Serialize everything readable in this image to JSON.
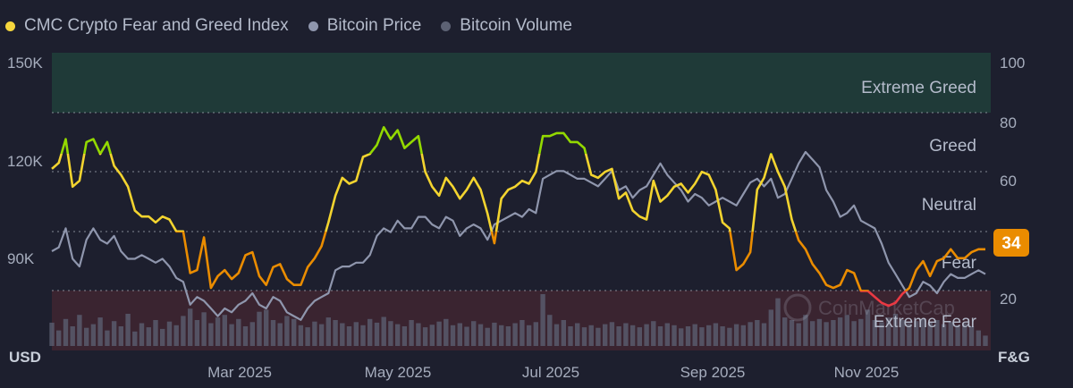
{
  "chart_data": {
    "type": "line",
    "legend": [
      {
        "label": "CMC Crypto Fear and Greed Index",
        "color": "#f5d63d"
      },
      {
        "label": "Bitcoin Price",
        "color": "#8f96ad"
      },
      {
        "label": "Bitcoin Volume",
        "color": "#5d6274"
      }
    ],
    "x_ticks": [
      "Mar 2025",
      "May 2025",
      "Jul 2025",
      "Sep 2025",
      "Nov 2025"
    ],
    "y_left": {
      "label": "USD",
      "ticks": [
        "150K",
        "120K",
        "90K"
      ],
      "tick_values": [
        150000,
        120000,
        90000
      ],
      "range": [
        72000,
        150000
      ]
    },
    "y_right": {
      "label": "F&G",
      "ticks": [
        "100",
        "80",
        "60",
        "20"
      ],
      "tick_values": [
        100,
        80,
        60,
        20
      ],
      "range": [
        0,
        100
      ]
    },
    "zones": [
      {
        "label": "Extreme Greed",
        "from": 80,
        "to": 100
      },
      {
        "label": "Greed",
        "from": 60,
        "to": 80
      },
      {
        "label": "Neutral",
        "from": 40,
        "to": 60
      },
      {
        "label": "Fear",
        "from": 20,
        "to": 40
      },
      {
        "label": "Extreme Fear",
        "from": 0,
        "to": 20
      }
    ],
    "current_value": "34",
    "watermark": "CoinMarketCap",
    "series": [
      {
        "name": "CMC Crypto Fear and Greed Index",
        "values": [
          61,
          63,
          71,
          55,
          57,
          70,
          71,
          66,
          70,
          62,
          59,
          55,
          47,
          45,
          45,
          43,
          45,
          44,
          40,
          40,
          26,
          27,
          38,
          21,
          25,
          27,
          24,
          26,
          32,
          33,
          25,
          22,
          28,
          29,
          24,
          22,
          22,
          28,
          31,
          35,
          43,
          52,
          58,
          56,
          57,
          65,
          66,
          69,
          75,
          71,
          74,
          68,
          70,
          72,
          60,
          55,
          52,
          58,
          55,
          51,
          54,
          58,
          54,
          46,
          36,
          51,
          54,
          55,
          57,
          56,
          60,
          72,
          72,
          73,
          73,
          70,
          70,
          68,
          59,
          58,
          60,
          61,
          51,
          53,
          47,
          45,
          44,
          57,
          50,
          52,
          55,
          56,
          53,
          56,
          60,
          59,
          54,
          43,
          41,
          27,
          29,
          33,
          54,
          58,
          66,
          60,
          55,
          44,
          37,
          34,
          29,
          26,
          22,
          21,
          22,
          27,
          26,
          20,
          20,
          18,
          16,
          15,
          16,
          19,
          21,
          27,
          30,
          25,
          30,
          31,
          34,
          31,
          31,
          33,
          34,
          34
        ]
      },
      {
        "name": "Bitcoin Price",
        "values": [
          98000,
          99000,
          104000,
          96000,
          94000,
          101000,
          104000,
          101000,
          100000,
          102000,
          98000,
          96000,
          96000,
          97000,
          96000,
          95000,
          96000,
          94000,
          91000,
          90000,
          84000,
          86000,
          85000,
          83000,
          81000,
          83000,
          82000,
          84000,
          85000,
          87000,
          84000,
          83000,
          86000,
          85000,
          82000,
          81000,
          80000,
          83000,
          85000,
          86000,
          87000,
          93000,
          94000,
          94000,
          95000,
          95000,
          97000,
          102000,
          104000,
          103000,
          106000,
          104000,
          104000,
          107000,
          107000,
          105000,
          104000,
          107000,
          106000,
          102000,
          104000,
          105000,
          104000,
          101000,
          105000,
          106000,
          107000,
          108000,
          107000,
          109000,
          108000,
          117000,
          118000,
          119000,
          119000,
          118000,
          117000,
          117000,
          116000,
          115000,
          117000,
          119000,
          114000,
          115000,
          112000,
          114000,
          115000,
          118000,
          121000,
          118000,
          116000,
          114000,
          111000,
          113000,
          112000,
          110000,
          111000,
          112000,
          111000,
          110000,
          113000,
          116000,
          117000,
          115000,
          117000,
          112000,
          113000,
          117000,
          121000,
          124000,
          122000,
          120000,
          114000,
          111000,
          107000,
          108000,
          110000,
          106000,
          105000,
          104000,
          100000,
          95000,
          92000,
          89000,
          86000,
          87000,
          90000,
          89000,
          87000,
          90000,
          92000,
          91000,
          91000,
          92000,
          93000,
          92000
        ]
      },
      {
        "name": "Bitcoin Volume",
        "relative_values": [
          0.45,
          0.3,
          0.52,
          0.38,
          0.6,
          0.35,
          0.42,
          0.55,
          0.3,
          0.48,
          0.38,
          0.62,
          0.28,
          0.44,
          0.36,
          0.5,
          0.33,
          0.47,
          0.4,
          0.58,
          0.72,
          0.5,
          0.65,
          0.44,
          0.55,
          0.6,
          0.42,
          0.52,
          0.38,
          0.46,
          0.66,
          0.7,
          0.5,
          0.44,
          0.58,
          0.52,
          0.4,
          0.36,
          0.47,
          0.42,
          0.55,
          0.5,
          0.44,
          0.38,
          0.46,
          0.4,
          0.52,
          0.45,
          0.56,
          0.48,
          0.42,
          0.38,
          0.5,
          0.44,
          0.36,
          0.41,
          0.47,
          0.52,
          0.4,
          0.44,
          0.37,
          0.48,
          0.42,
          0.35,
          0.45,
          0.4,
          0.38,
          0.44,
          0.5,
          0.4,
          0.46,
          1.0,
          0.6,
          0.42,
          0.5,
          0.38,
          0.44,
          0.36,
          0.4,
          0.35,
          0.42,
          0.46,
          0.38,
          0.44,
          0.4,
          0.36,
          0.42,
          0.48,
          0.38,
          0.44,
          0.4,
          0.34,
          0.38,
          0.42,
          0.36,
          0.4,
          0.44,
          0.38,
          0.35,
          0.42,
          0.4,
          0.46,
          0.5,
          0.44,
          0.7,
          0.92,
          0.55,
          0.5,
          0.44,
          0.6,
          0.48,
          0.52,
          0.46,
          0.5,
          0.55,
          0.6,
          0.48,
          0.52,
          0.7,
          0.5,
          0.46,
          0.55,
          0.62,
          0.5,
          0.44,
          0.48,
          0.52,
          0.45,
          0.5,
          0.42,
          0.46,
          0.4,
          0.44,
          0.38,
          0.3,
          0.2
        ]
      }
    ]
  }
}
